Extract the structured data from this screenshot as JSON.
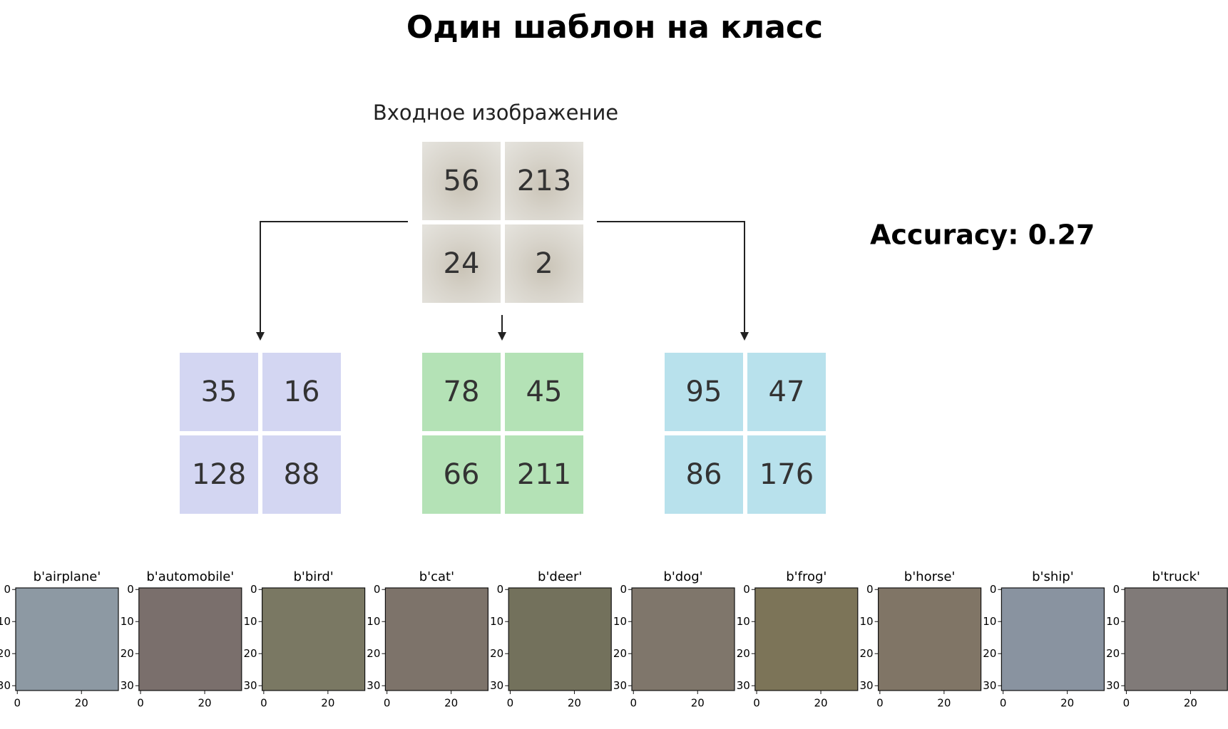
{
  "header": {
    "title": "Один шаблон на класс"
  },
  "input": {
    "label": "Входное изображение",
    "pixels": [
      [
        56,
        213
      ],
      [
        24,
        2
      ]
    ]
  },
  "templates": [
    {
      "color": "#d3d6f2",
      "pixels": [
        [
          35,
          16
        ],
        [
          128,
          88
        ]
      ]
    },
    {
      "color": "#b4e2b6",
      "pixels": [
        [
          78,
          45
        ],
        [
          66,
          211
        ]
      ]
    },
    {
      "color": "#b8e1ec",
      "pixels": [
        [
          95,
          47
        ],
        [
          86,
          176
        ]
      ]
    }
  ],
  "accuracy": "Accuracy: 0.27",
  "class_images": {
    "xticks": [
      0,
      20
    ],
    "yticks": [
      0,
      10,
      20,
      30
    ],
    "items": [
      {
        "title": "b'airplane'",
        "color": "#8d99a3"
      },
      {
        "title": "b'automobile'",
        "color": "#7a6f6c"
      },
      {
        "title": "b'bird'",
        "color": "#7a7863"
      },
      {
        "title": "b'cat'",
        "color": "#7d736a"
      },
      {
        "title": "b'deer'",
        "color": "#73715c"
      },
      {
        "title": "b'dog'",
        "color": "#7f766b"
      },
      {
        "title": "b'frog'",
        "color": "#7c7458"
      },
      {
        "title": "b'horse'",
        "color": "#807566"
      },
      {
        "title": "b'ship'",
        "color": "#8993a0"
      },
      {
        "title": "b'truck'",
        "color": "#807a78"
      }
    ]
  }
}
